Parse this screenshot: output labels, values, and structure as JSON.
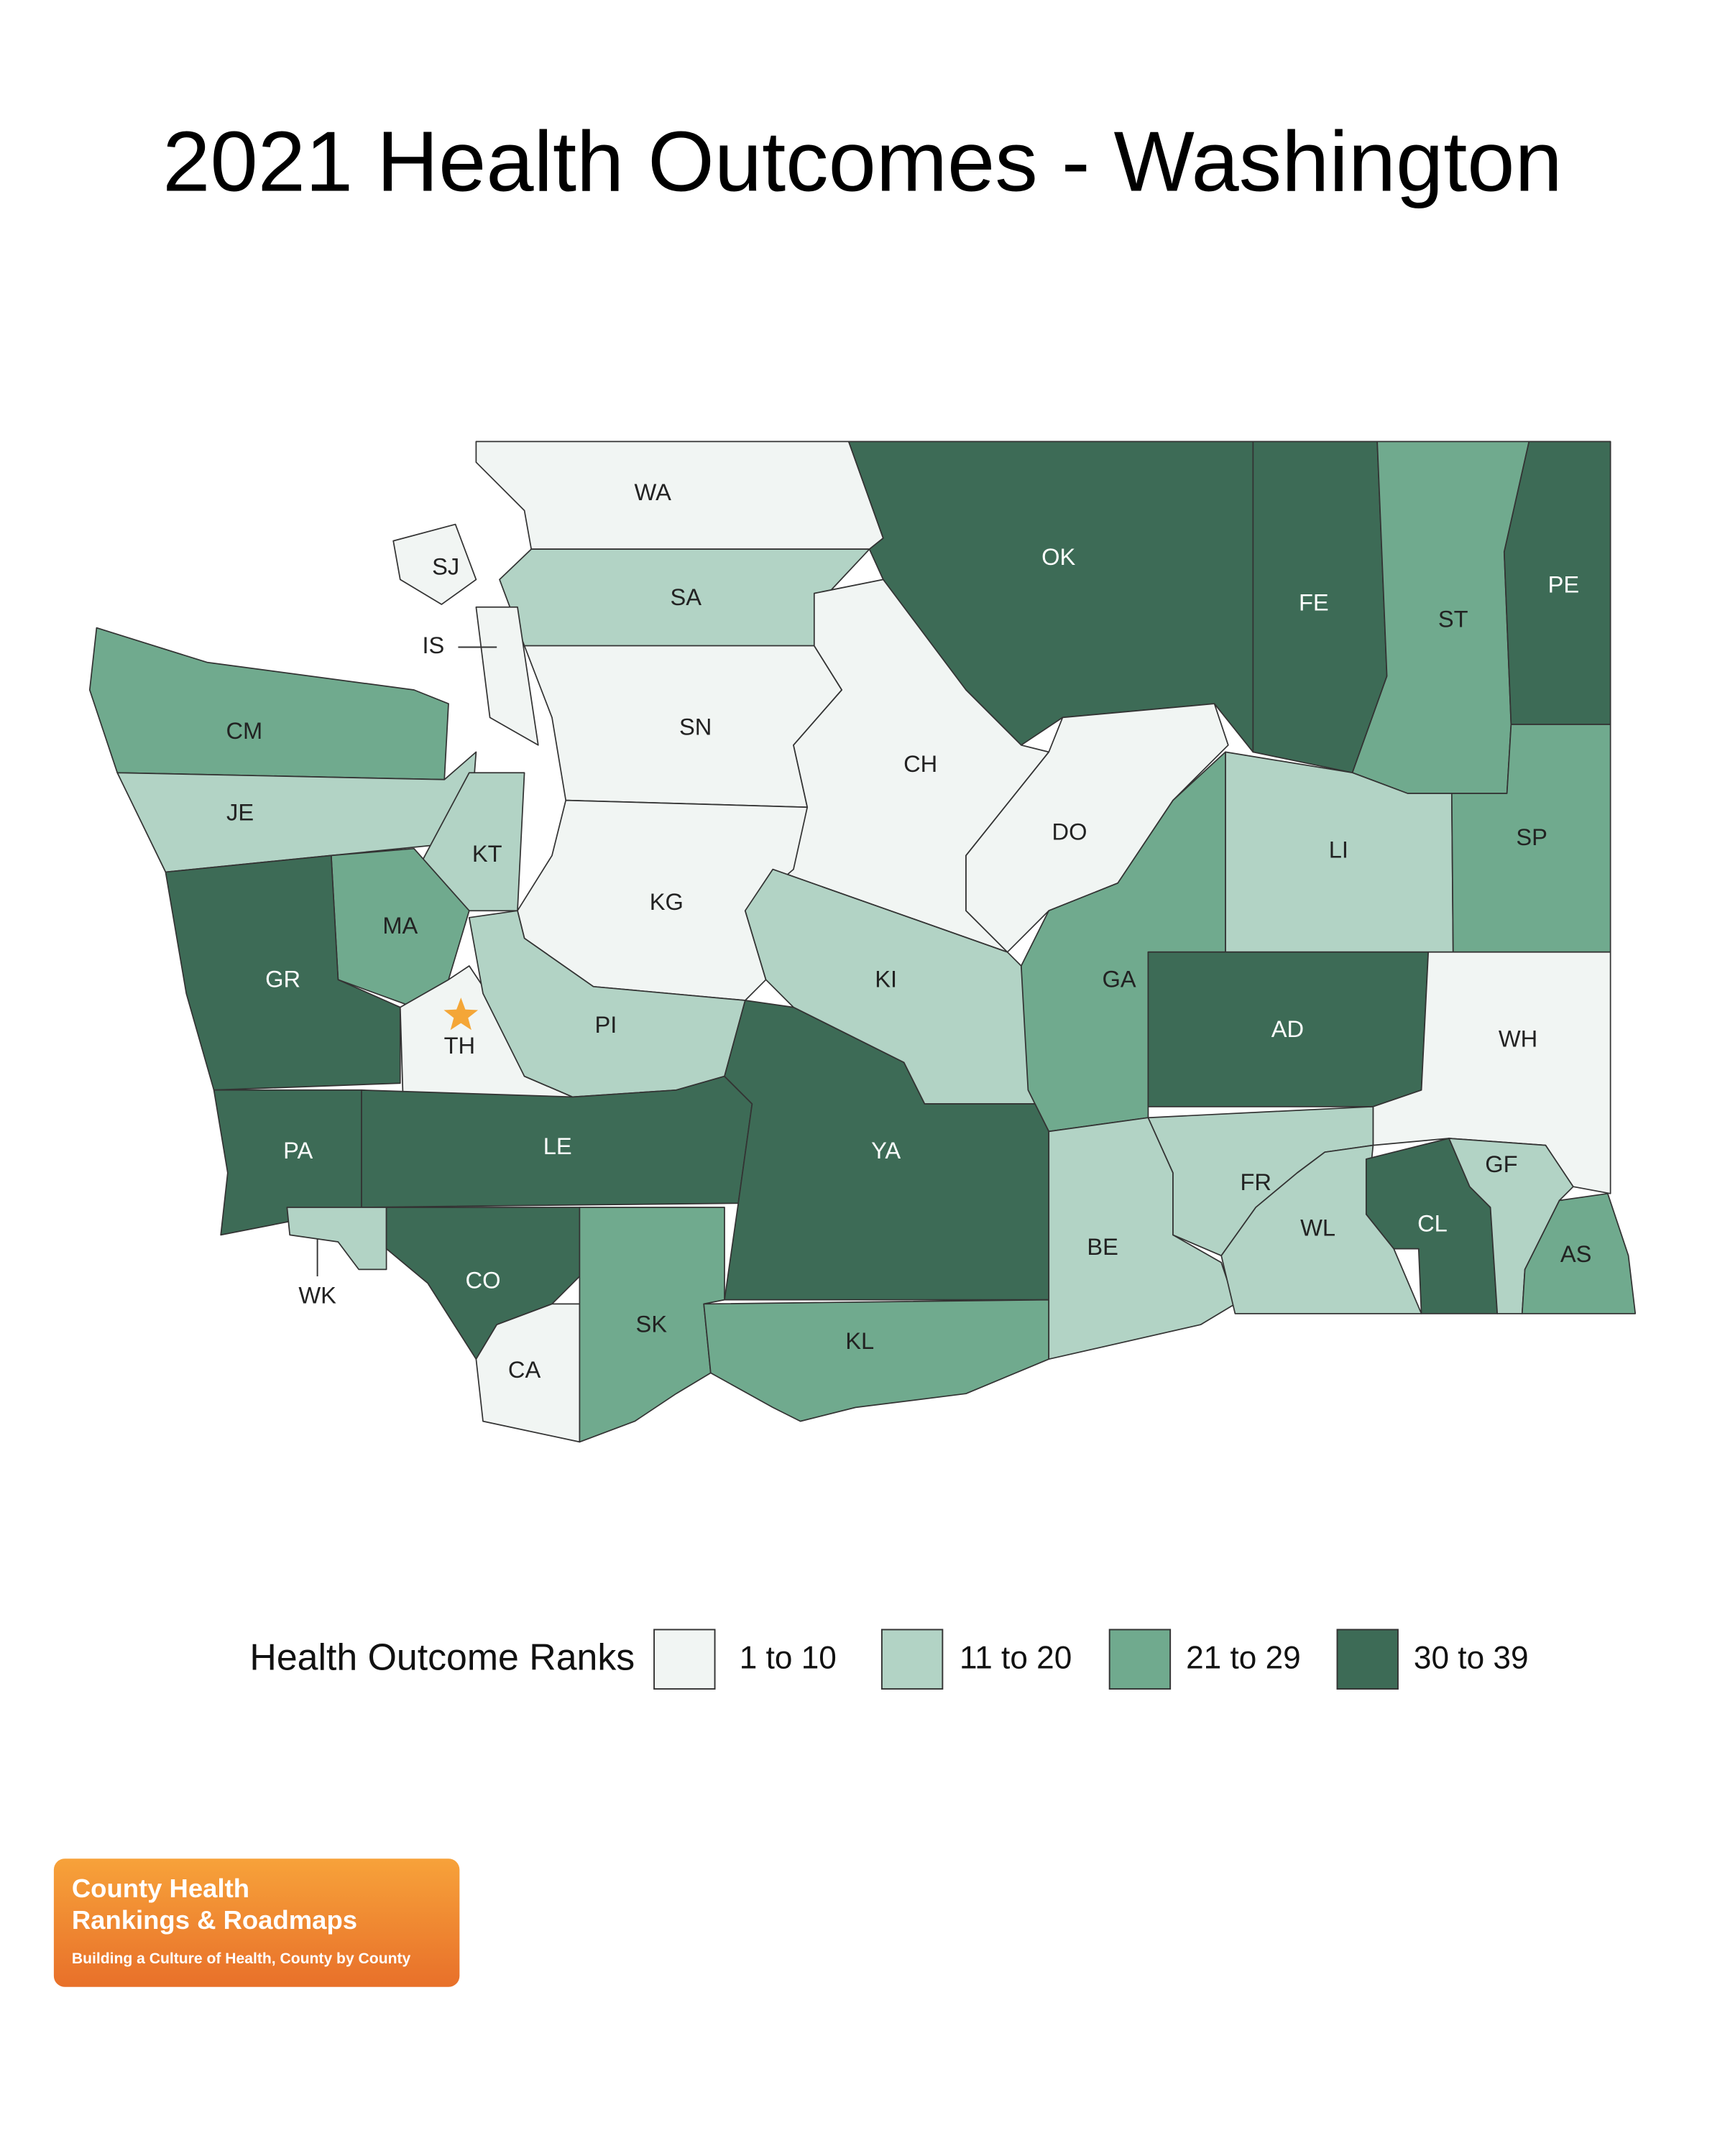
{
  "title": "2021 Health Outcomes - Washington",
  "counties": [
    {
      "label": "WA",
      "color": "#f1f5f3"
    },
    {
      "label": "SJ",
      "color": "#f1f5f3"
    },
    {
      "label": "SA",
      "color": "#b2d3c5"
    },
    {
      "label": "IS",
      "color": "#f1f5f3"
    },
    {
      "label": "OK",
      "color": "#3d6b56"
    },
    {
      "label": "FE",
      "color": "#3d6b56"
    },
    {
      "label": "ST",
      "color": "#70aa8e"
    },
    {
      "label": "PE",
      "color": "#3d6b56"
    },
    {
      "label": "CM",
      "color": "#70aa8e"
    },
    {
      "label": "JE",
      "color": "#b2d3c5"
    },
    {
      "label": "SN",
      "color": "#f1f5f3"
    },
    {
      "label": "CH",
      "color": "#f1f5f3"
    },
    {
      "label": "DO",
      "color": "#f1f5f3"
    },
    {
      "label": "KT",
      "color": "#b2d3c5"
    },
    {
      "label": "MA",
      "color": "#70aa8e"
    },
    {
      "label": "KG",
      "color": "#f1f5f3"
    },
    {
      "label": "LI",
      "color": "#b2d3c5"
    },
    {
      "label": "SP",
      "color": "#70aa8e"
    },
    {
      "label": "GR",
      "color": "#3d6b56"
    },
    {
      "label": "TH",
      "color": "#f1f5f3"
    },
    {
      "label": "PI",
      "color": "#b2d3c5"
    },
    {
      "label": "KI",
      "color": "#b2d3c5"
    },
    {
      "label": "GA",
      "color": "#70aa8e"
    },
    {
      "label": "AD",
      "color": "#3d6b56"
    },
    {
      "label": "WH",
      "color": "#f1f5f3"
    },
    {
      "label": "PA",
      "color": "#3d6b56"
    },
    {
      "label": "LE",
      "color": "#3d6b56"
    },
    {
      "label": "YA",
      "color": "#3d6b56"
    },
    {
      "label": "WK",
      "color": "#b2d3c5"
    },
    {
      "label": "CO",
      "color": "#3d6b56"
    },
    {
      "label": "CA",
      "color": "#f1f5f3"
    },
    {
      "label": "SK",
      "color": "#70aa8e"
    },
    {
      "label": "KL",
      "color": "#70aa8e"
    },
    {
      "label": "BE",
      "color": "#b2d3c5"
    },
    {
      "label": "FR",
      "color": "#b2d3c5"
    },
    {
      "label": "WL",
      "color": "#b2d3c5"
    },
    {
      "label": "CL",
      "color": "#3d6b56"
    },
    {
      "label": "GF",
      "color": "#b2d3c5"
    },
    {
      "label": "AS",
      "color": "#70aa8e"
    }
  ],
  "legend": {
    "title": "Health Outcome Ranks",
    "items": [
      {
        "label": "1 to 10",
        "color": "#f1f5f3"
      },
      {
        "label": "11 to 20",
        "color": "#b2d3c5"
      },
      {
        "label": "21 to 29",
        "color": "#70aa8e"
      },
      {
        "label": "30 to 39",
        "color": "#3d6b56"
      }
    ]
  },
  "logo": {
    "line1": "County Health",
    "line2": "Rankings & Roadmaps",
    "tagline": "Building a Culture of Health, County by County"
  }
}
